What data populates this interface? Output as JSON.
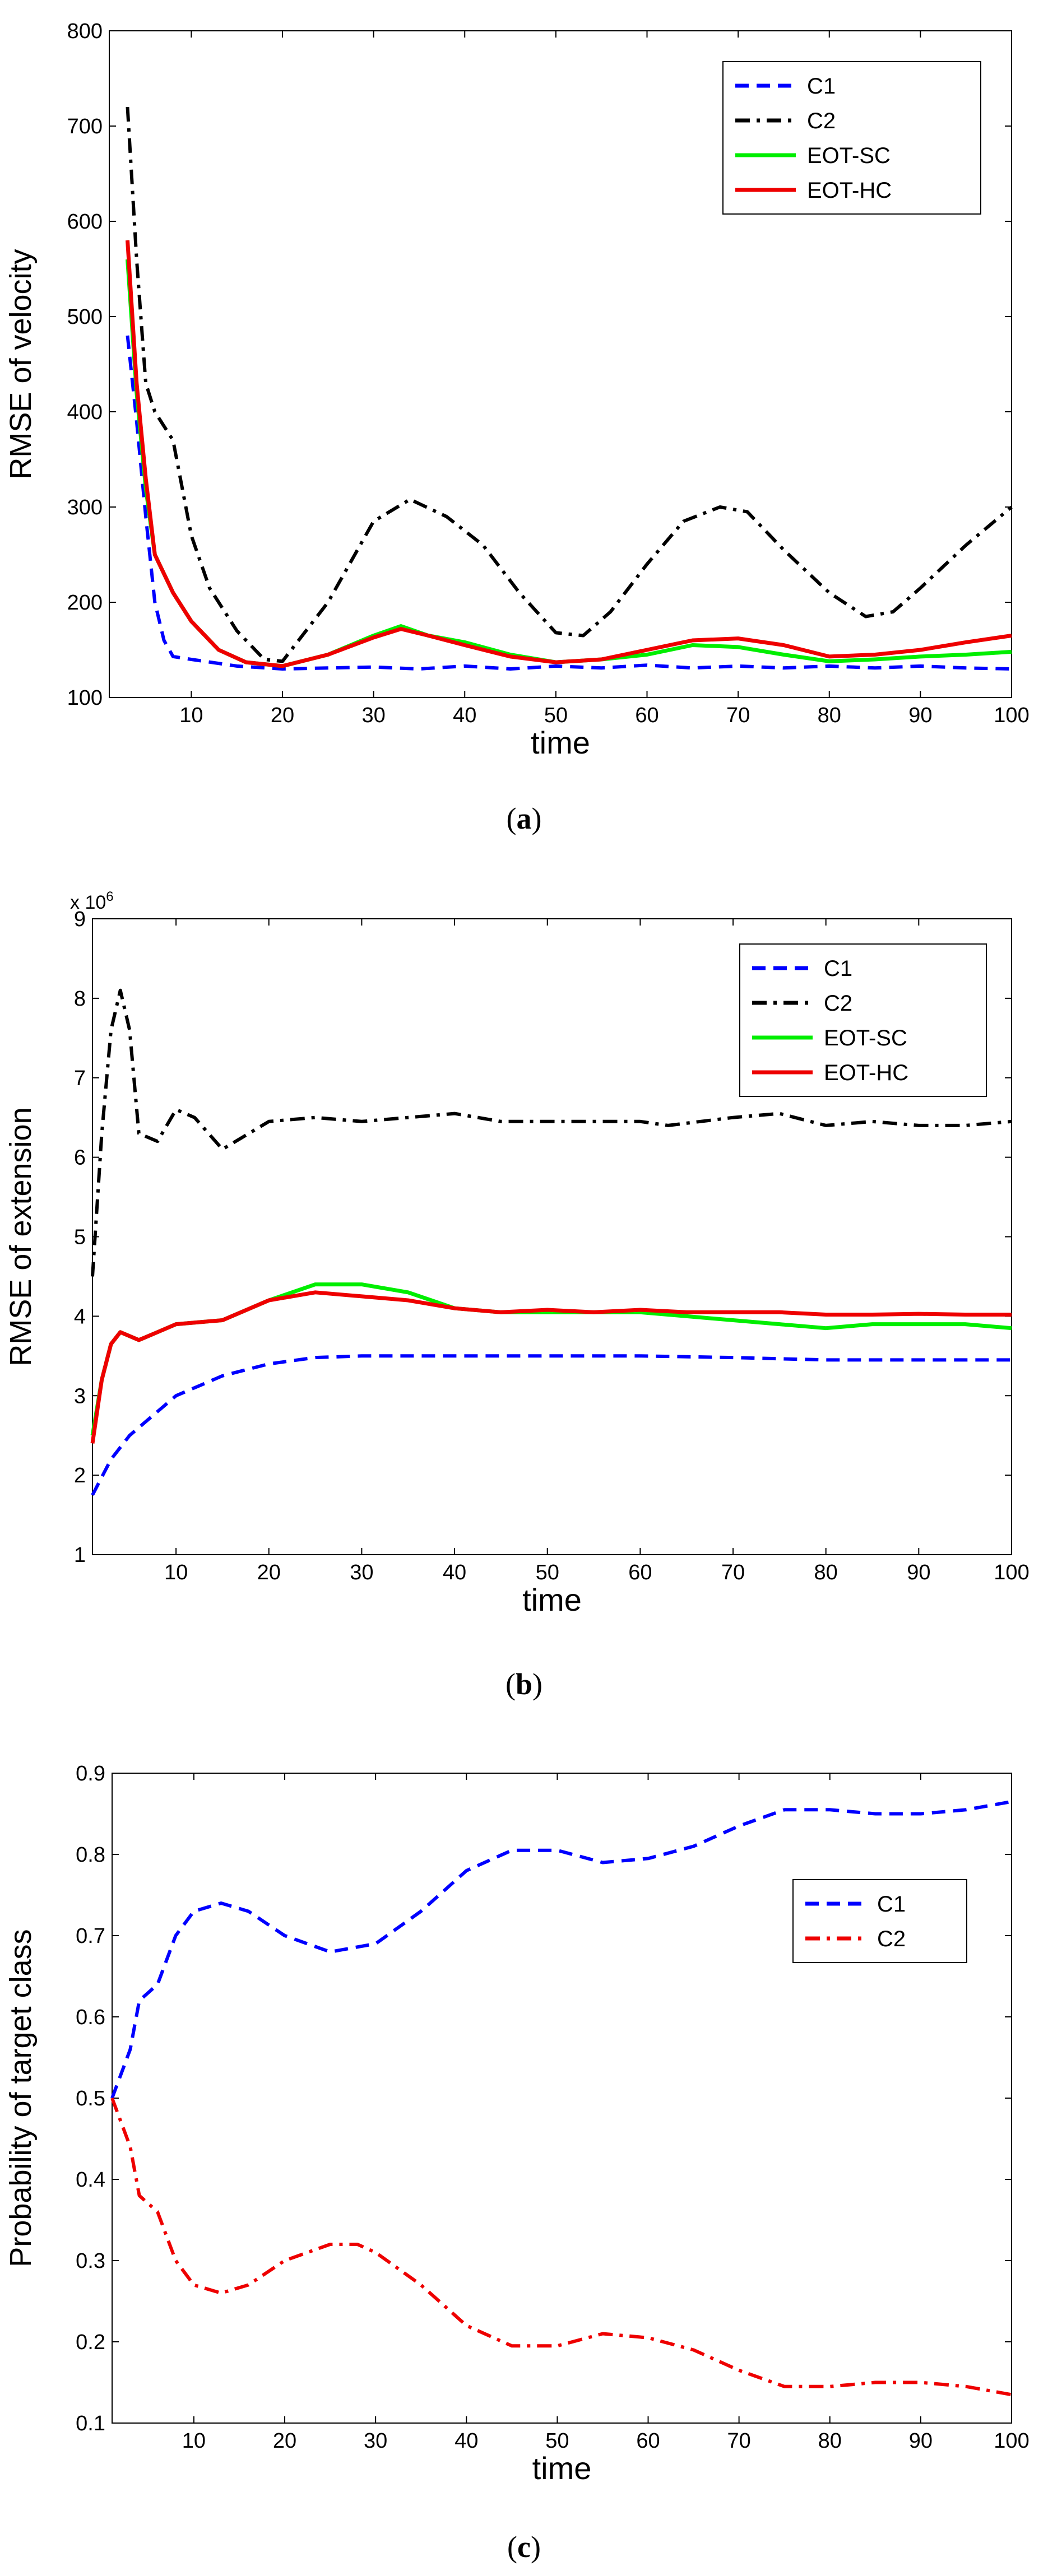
{
  "chart_data": [
    {
      "type": "line",
      "xlabel": "time",
      "ylabel": "RMSE of velocity",
      "xlim": [
        1,
        100
      ],
      "ylim": [
        100,
        800
      ],
      "xticks": [
        10,
        20,
        30,
        40,
        50,
        60,
        70,
        80,
        90,
        100
      ],
      "yticks": [
        100,
        200,
        300,
        400,
        500,
        600,
        700,
        800
      ],
      "legend": "top-right",
      "grid": false,
      "caption": {
        "open": "(",
        "letter": "a",
        "close": ")"
      },
      "series": [
        {
          "name": "C1",
          "color": "#0000ff",
          "dash": "dashed",
          "points": [
            [
              3,
              480
            ],
            [
              4,
              390
            ],
            [
              5,
              290
            ],
            [
              6,
              200
            ],
            [
              7,
              160
            ],
            [
              8,
              143
            ],
            [
              10,
              140
            ],
            [
              15,
              133
            ],
            [
              20,
              130
            ],
            [
              25,
              131
            ],
            [
              30,
              132
            ],
            [
              35,
              130
            ],
            [
              40,
              133
            ],
            [
              45,
              130
            ],
            [
              50,
              133
            ],
            [
              55,
              131
            ],
            [
              60,
              134
            ],
            [
              65,
              131
            ],
            [
              70,
              133
            ],
            [
              75,
              131
            ],
            [
              80,
              133
            ],
            [
              85,
              131
            ],
            [
              90,
              133
            ],
            [
              95,
              131
            ],
            [
              100,
              130
            ]
          ]
        },
        {
          "name": "C2",
          "color": "#000000",
          "dash": "dashdot",
          "points": [
            [
              3,
              720
            ],
            [
              4,
              560
            ],
            [
              5,
              430
            ],
            [
              6,
              400
            ],
            [
              8,
              370
            ],
            [
              10,
              270
            ],
            [
              12,
              215
            ],
            [
              15,
              170
            ],
            [
              18,
              140
            ],
            [
              20,
              138
            ],
            [
              25,
              200
            ],
            [
              30,
              285
            ],
            [
              34,
              308
            ],
            [
              38,
              290
            ],
            [
              42,
              260
            ],
            [
              46,
              210
            ],
            [
              50,
              168
            ],
            [
              53,
              165
            ],
            [
              56,
              190
            ],
            [
              60,
              240
            ],
            [
              64,
              285
            ],
            [
              68,
              300
            ],
            [
              71,
              295
            ],
            [
              75,
              255
            ],
            [
              80,
              210
            ],
            [
              84,
              185
            ],
            [
              87,
              190
            ],
            [
              90,
              215
            ],
            [
              95,
              260
            ],
            [
              100,
              300
            ]
          ]
        },
        {
          "name": "EOT-SC",
          "color": "#00ee00",
          "dash": "solid",
          "points": [
            [
              3,
              560
            ],
            [
              4,
              420
            ],
            [
              5,
              320
            ],
            [
              6,
              250
            ],
            [
              8,
              210
            ],
            [
              10,
              180
            ],
            [
              13,
              150
            ],
            [
              16,
              137
            ],
            [
              20,
              133
            ],
            [
              25,
              145
            ],
            [
              30,
              165
            ],
            [
              33,
              175
            ],
            [
              36,
              165
            ],
            [
              40,
              158
            ],
            [
              45,
              145
            ],
            [
              50,
              137
            ],
            [
              55,
              140
            ],
            [
              60,
              145
            ],
            [
              65,
              155
            ],
            [
              70,
              153
            ],
            [
              75,
              145
            ],
            [
              80,
              138
            ],
            [
              85,
              140
            ],
            [
              90,
              143
            ],
            [
              95,
              145
            ],
            [
              100,
              148
            ]
          ]
        },
        {
          "name": "EOT-HC",
          "color": "#ee0000",
          "dash": "solid",
          "points": [
            [
              3,
              580
            ],
            [
              4,
              430
            ],
            [
              5,
              330
            ],
            [
              6,
              250
            ],
            [
              8,
              210
            ],
            [
              10,
              180
            ],
            [
              13,
              150
            ],
            [
              16,
              137
            ],
            [
              20,
              133
            ],
            [
              25,
              145
            ],
            [
              30,
              163
            ],
            [
              33,
              172
            ],
            [
              36,
              165
            ],
            [
              40,
              155
            ],
            [
              45,
              143
            ],
            [
              50,
              137
            ],
            [
              55,
              140
            ],
            [
              60,
              150
            ],
            [
              65,
              160
            ],
            [
              70,
              162
            ],
            [
              75,
              155
            ],
            [
              80,
              143
            ],
            [
              85,
              145
            ],
            [
              90,
              150
            ],
            [
              95,
              158
            ],
            [
              100,
              165
            ]
          ]
        }
      ]
    },
    {
      "type": "line",
      "xlabel": "time",
      "ylabel": "RMSE of extension",
      "exponent_label": "x 10",
      "exponent_power": "6",
      "xlim": [
        1,
        100
      ],
      "ylim": [
        1,
        9
      ],
      "xticks": [
        10,
        20,
        30,
        40,
        50,
        60,
        70,
        80,
        90,
        100
      ],
      "yticks": [
        1,
        2,
        3,
        4,
        5,
        6,
        7,
        8,
        9
      ],
      "legend": "top-right",
      "grid": false,
      "caption": {
        "open": "(",
        "letter": "b",
        "close": ")"
      },
      "series": [
        {
          "name": "C1",
          "color": "#0000ff",
          "dash": "dashed",
          "points": [
            [
              1,
              1.75
            ],
            [
              3,
              2.2
            ],
            [
              5,
              2.5
            ],
            [
              8,
              2.8
            ],
            [
              10,
              3.0
            ],
            [
              15,
              3.25
            ],
            [
              20,
              3.4
            ],
            [
              25,
              3.48
            ],
            [
              30,
              3.5
            ],
            [
              35,
              3.5
            ],
            [
              40,
              3.5
            ],
            [
              50,
              3.5
            ],
            [
              60,
              3.5
            ],
            [
              70,
              3.48
            ],
            [
              80,
              3.45
            ],
            [
              90,
              3.45
            ],
            [
              100,
              3.45
            ]
          ]
        },
        {
          "name": "C2",
          "color": "#000000",
          "dash": "dashdot",
          "points": [
            [
              1,
              4.5
            ],
            [
              2,
              6.3
            ],
            [
              3,
              7.6
            ],
            [
              4,
              8.1
            ],
            [
              5,
              7.6
            ],
            [
              6,
              6.3
            ],
            [
              8,
              6.2
            ],
            [
              10,
              6.6
            ],
            [
              12,
              6.5
            ],
            [
              15,
              6.1
            ],
            [
              20,
              6.45
            ],
            [
              25,
              6.5
            ],
            [
              30,
              6.45
            ],
            [
              35,
              6.5
            ],
            [
              40,
              6.55
            ],
            [
              45,
              6.45
            ],
            [
              50,
              6.45
            ],
            [
              55,
              6.45
            ],
            [
              60,
              6.45
            ],
            [
              63,
              6.4
            ],
            [
              70,
              6.5
            ],
            [
              75,
              6.55
            ],
            [
              80,
              6.4
            ],
            [
              85,
              6.45
            ],
            [
              90,
              6.4
            ],
            [
              95,
              6.4
            ],
            [
              100,
              6.45
            ]
          ]
        },
        {
          "name": "EOT-SC",
          "color": "#00ee00",
          "dash": "solid",
          "points": [
            [
              1,
              2.5
            ],
            [
              2,
              3.2
            ],
            [
              3,
              3.65
            ],
            [
              4,
              3.8
            ],
            [
              6,
              3.7
            ],
            [
              8,
              3.8
            ],
            [
              10,
              3.9
            ],
            [
              15,
              3.95
            ],
            [
              20,
              4.2
            ],
            [
              25,
              4.4
            ],
            [
              30,
              4.4
            ],
            [
              35,
              4.3
            ],
            [
              40,
              4.1
            ],
            [
              45,
              4.05
            ],
            [
              50,
              4.05
            ],
            [
              55,
              4.05
            ],
            [
              60,
              4.05
            ],
            [
              65,
              4.0
            ],
            [
              70,
              3.95
            ],
            [
              75,
              3.9
            ],
            [
              80,
              3.85
            ],
            [
              85,
              3.9
            ],
            [
              90,
              3.9
            ],
            [
              95,
              3.9
            ],
            [
              100,
              3.85
            ]
          ]
        },
        {
          "name": "EOT-HC",
          "color": "#ee0000",
          "dash": "solid",
          "points": [
            [
              1,
              2.4
            ],
            [
              2,
              3.2
            ],
            [
              3,
              3.65
            ],
            [
              4,
              3.8
            ],
            [
              6,
              3.7
            ],
            [
              8,
              3.8
            ],
            [
              10,
              3.9
            ],
            [
              15,
              3.95
            ],
            [
              20,
              4.2
            ],
            [
              25,
              4.3
            ],
            [
              30,
              4.25
            ],
            [
              35,
              4.2
            ],
            [
              40,
              4.1
            ],
            [
              45,
              4.05
            ],
            [
              50,
              4.08
            ],
            [
              55,
              4.05
            ],
            [
              60,
              4.08
            ],
            [
              65,
              4.05
            ],
            [
              70,
              4.05
            ],
            [
              75,
              4.05
            ],
            [
              80,
              4.02
            ],
            [
              85,
              4.02
            ],
            [
              90,
              4.03
            ],
            [
              95,
              4.02
            ],
            [
              100,
              4.02
            ]
          ]
        }
      ]
    },
    {
      "type": "line",
      "xlabel": "time",
      "ylabel": "Probability of target class",
      "xlim": [
        1,
        100
      ],
      "ylim": [
        0.1,
        0.9
      ],
      "xticks": [
        10,
        20,
        30,
        40,
        50,
        60,
        70,
        80,
        90,
        100
      ],
      "yticks": [
        0.1,
        0.2,
        0.3,
        0.4,
        0.5,
        0.6,
        0.7,
        0.8,
        0.9
      ],
      "legend": "top-right",
      "grid": false,
      "caption": {
        "open": "(",
        "letter": "c",
        "close": ")"
      },
      "series": [
        {
          "name": "C1",
          "color": "#0000ff",
          "dash": "dashed",
          "points": [
            [
              1,
              0.5
            ],
            [
              3,
              0.56
            ],
            [
              4,
              0.62
            ],
            [
              6,
              0.64
            ],
            [
              8,
              0.7
            ],
            [
              10,
              0.73
            ],
            [
              13,
              0.74
            ],
            [
              16,
              0.73
            ],
            [
              20,
              0.7
            ],
            [
              25,
              0.68
            ],
            [
              30,
              0.69
            ],
            [
              35,
              0.73
            ],
            [
              40,
              0.78
            ],
            [
              45,
              0.805
            ],
            [
              50,
              0.805
            ],
            [
              55,
              0.79
            ],
            [
              60,
              0.795
            ],
            [
              65,
              0.81
            ],
            [
              70,
              0.835
            ],
            [
              75,
              0.855
            ],
            [
              80,
              0.855
            ],
            [
              85,
              0.85
            ],
            [
              90,
              0.85
            ],
            [
              95,
              0.855
            ],
            [
              100,
              0.865
            ]
          ]
        },
        {
          "name": "C2",
          "color": "#ee0000",
          "dash": "dashdot",
          "points": [
            [
              1,
              0.5
            ],
            [
              3,
              0.44
            ],
            [
              4,
              0.38
            ],
            [
              6,
              0.36
            ],
            [
              8,
              0.3
            ],
            [
              10,
              0.27
            ],
            [
              13,
              0.26
            ],
            [
              16,
              0.27
            ],
            [
              20,
              0.3
            ],
            [
              25,
              0.32
            ],
            [
              28,
              0.32
            ],
            [
              30,
              0.31
            ],
            [
              35,
              0.27
            ],
            [
              40,
              0.22
            ],
            [
              45,
              0.195
            ],
            [
              50,
              0.195
            ],
            [
              55,
              0.21
            ],
            [
              60,
              0.205
            ],
            [
              65,
              0.19
            ],
            [
              70,
              0.165
            ],
            [
              75,
              0.145
            ],
            [
              80,
              0.145
            ],
            [
              85,
              0.15
            ],
            [
              90,
              0.15
            ],
            [
              95,
              0.145
            ],
            [
              100,
              0.135
            ]
          ]
        }
      ]
    }
  ]
}
